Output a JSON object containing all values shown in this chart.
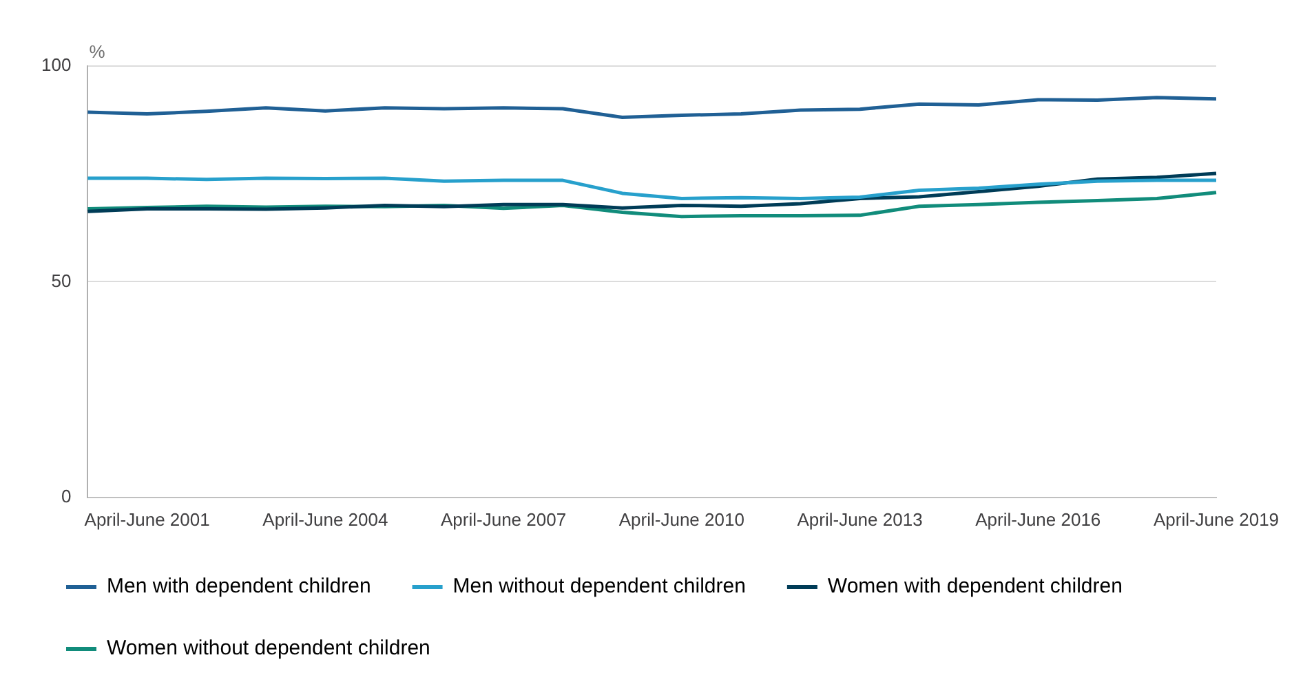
{
  "chart_data": {
    "type": "line",
    "annotations": [
      "%"
    ],
    "categories": [
      null,
      "April-June 2001",
      null,
      null,
      "April-June 2004",
      null,
      null,
      "April-June 2007",
      null,
      null,
      "April-June 2010",
      null,
      null,
      "April-June 2013",
      null,
      null,
      "April-June 2016",
      null,
      null,
      "April-June 2019"
    ],
    "series": [
      {
        "name": "Men with dependent children",
        "color": "#206095",
        "values": [
          89.3,
          88.9,
          89.5,
          90.3,
          89.6,
          90.3,
          90.1,
          90.3,
          90.1,
          88.1,
          88.6,
          88.9,
          89.8,
          90.0,
          91.2,
          91.0,
          92.2,
          92.1,
          92.7,
          92.4
        ]
      },
      {
        "name": "Men without dependent children",
        "color": "#27a0cc",
        "values": [
          74.0,
          74.0,
          73.7,
          74.0,
          73.9,
          74.0,
          73.3,
          73.5,
          73.5,
          70.5,
          69.3,
          69.5,
          69.3,
          69.6,
          71.2,
          71.7,
          72.6,
          73.3,
          73.5,
          73.5
        ]
      },
      {
        "name": "Women with dependent children",
        "color": "#003c57",
        "values": [
          66.3,
          66.9,
          66.9,
          66.8,
          67.1,
          67.7,
          67.4,
          67.9,
          67.9,
          67.1,
          67.7,
          67.5,
          68.1,
          69.3,
          69.7,
          70.9,
          72.1,
          73.8,
          74.2,
          75.1
        ]
      },
      {
        "name": "Women without dependent children",
        "color": "#118c7b",
        "values": [
          66.9,
          67.2,
          67.5,
          67.3,
          67.5,
          67.4,
          67.7,
          67.0,
          67.7,
          66.1,
          65.1,
          65.3,
          65.3,
          65.4,
          67.5,
          67.9,
          68.4,
          68.8,
          69.3,
          70.7
        ]
      }
    ],
    "ylim": [
      0,
      100
    ],
    "yticks": [
      0,
      50,
      100
    ],
    "grid": "y",
    "legend": "bottom",
    "marker": "none",
    "line_style": "solid"
  }
}
